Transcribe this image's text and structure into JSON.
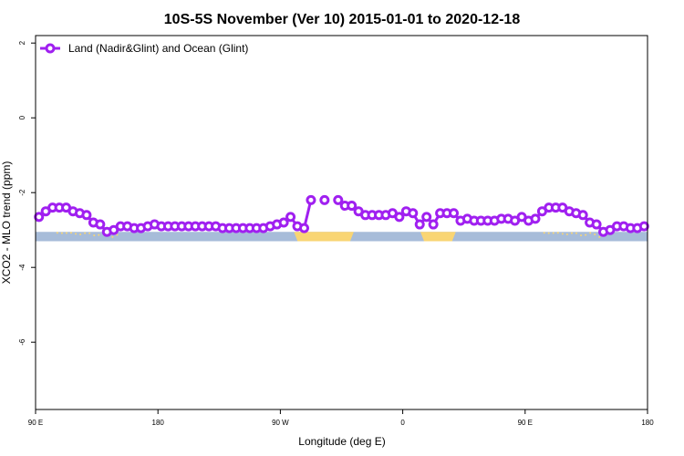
{
  "chart_data": {
    "type": "line",
    "title": "10S-5S November (Ver 10)   2015-01-01 to 2020-12-18",
    "xlabel": "Longitude (deg E)",
    "ylabel": "XCO2 - MLO trend (ppm)",
    "x_axis": {
      "range_deg_east_unwrapped": [
        90,
        540
      ],
      "ticks": [
        {
          "value": 90,
          "label": "90 E"
        },
        {
          "value": 180,
          "label": "180"
        },
        {
          "value": 270,
          "label": "90 W"
        },
        {
          "value": 360,
          "label": "0"
        },
        {
          "value": 450,
          "label": "90 E"
        },
        {
          "value": 540,
          "label": "180"
        }
      ]
    },
    "y_axis": {
      "range": [
        -7.8,
        2.2
      ],
      "ticks": [
        {
          "value": 2,
          "label": "2"
        },
        {
          "value": 0,
          "label": "0"
        },
        {
          "value": -2,
          "label": "-2"
        },
        {
          "value": -4,
          "label": "-4"
        },
        {
          "value": -6,
          "label": "-6"
        }
      ]
    },
    "legend": {
      "position": "top-left",
      "entries": [
        {
          "label": "Land (Nadir&Glint) and Ocean (Glint)",
          "color": "#a020f0"
        }
      ]
    },
    "series": [
      {
        "name": "Land (Nadir&Glint) and Ocean (Glint)",
        "color": "#a020f0",
        "segments": [
          [
            [
              92.5,
              -2.65
            ],
            [
              97.5,
              -2.5
            ],
            [
              102.5,
              -2.4
            ],
            [
              107.5,
              -2.4
            ],
            [
              112.5,
              -2.4
            ],
            [
              117.5,
              -2.5
            ],
            [
              122.5,
              -2.55
            ],
            [
              127.5,
              -2.6
            ],
            [
              132.5,
              -2.8
            ],
            [
              137.5,
              -2.85
            ],
            [
              142.5,
              -3.05
            ],
            [
              147.5,
              -3.0
            ],
            [
              152.5,
              -2.9
            ],
            [
              157.5,
              -2.9
            ],
            [
              162.5,
              -2.95
            ],
            [
              167.5,
              -2.95
            ],
            [
              172.5,
              -2.9
            ],
            [
              177.5,
              -2.85
            ],
            [
              182.5,
              -2.9
            ],
            [
              187.5,
              -2.9
            ],
            [
              192.5,
              -2.9
            ],
            [
              197.5,
              -2.9
            ],
            [
              202.5,
              -2.9
            ],
            [
              207.5,
              -2.9
            ],
            [
              212.5,
              -2.9
            ],
            [
              217.5,
              -2.9
            ],
            [
              222.5,
              -2.9
            ],
            [
              227.5,
              -2.95
            ],
            [
              232.5,
              -2.95
            ],
            [
              237.5,
              -2.95
            ],
            [
              242.5,
              -2.95
            ],
            [
              247.5,
              -2.95
            ],
            [
              252.5,
              -2.95
            ],
            [
              257.5,
              -2.95
            ],
            [
              262.5,
              -2.9
            ],
            [
              267.5,
              -2.85
            ],
            [
              272.5,
              -2.8
            ],
            [
              277.5,
              -2.65
            ],
            [
              282.5,
              -2.9
            ],
            [
              287.5,
              -2.95
            ],
            [
              292.5,
              -2.2
            ]
          ],
          [
            [
              302.5,
              -2.2
            ]
          ],
          [
            [
              312.5,
              -2.2
            ],
            [
              317.5,
              -2.35
            ],
            [
              322.5,
              -2.35
            ],
            [
              327.5,
              -2.5
            ],
            [
              332.5,
              -2.6
            ],
            [
              337.5,
              -2.6
            ],
            [
              342.5,
              -2.6
            ],
            [
              347.5,
              -2.6
            ],
            [
              352.5,
              -2.55
            ],
            [
              357.5,
              -2.65
            ],
            [
              362.5,
              -2.5
            ],
            [
              367.5,
              -2.55
            ],
            [
              372.5,
              -2.85
            ],
            [
              377.5,
              -2.65
            ],
            [
              382.5,
              -2.85
            ],
            [
              387.5,
              -2.55
            ],
            [
              392.5,
              -2.55
            ],
            [
              397.5,
              -2.55
            ],
            [
              402.5,
              -2.75
            ],
            [
              407.5,
              -2.7
            ],
            [
              412.5,
              -2.75
            ],
            [
              417.5,
              -2.75
            ],
            [
              422.5,
              -2.75
            ],
            [
              427.5,
              -2.75
            ],
            [
              432.5,
              -2.7
            ],
            [
              437.5,
              -2.7
            ],
            [
              442.5,
              -2.75
            ],
            [
              447.5,
              -2.65
            ],
            [
              452.5,
              -2.75
            ],
            [
              457.5,
              -2.7
            ],
            [
              462.5,
              -2.5
            ],
            [
              467.5,
              -2.4
            ],
            [
              472.5,
              -2.4
            ],
            [
              477.5,
              -2.4
            ],
            [
              482.5,
              -2.5
            ],
            [
              487.5,
              -2.55
            ],
            [
              492.5,
              -2.6
            ],
            [
              497.5,
              -2.8
            ],
            [
              502.5,
              -2.85
            ],
            [
              507.5,
              -3.05
            ],
            [
              512.5,
              -3.0
            ],
            [
              517.5,
              -2.9
            ],
            [
              522.5,
              -2.9
            ],
            [
              527.5,
              -2.95
            ],
            [
              532.5,
              -2.95
            ],
            [
              537.5,
              -2.9
            ]
          ]
        ]
      }
    ],
    "surface_band": {
      "y_top": -3.05,
      "y_bottom": -3.3,
      "ocean_color": "#a7bcd9",
      "land_color": "#f9d573",
      "land_spans": [
        [
          280,
          324
        ],
        [
          373,
          399
        ]
      ],
      "scattered_land": [
        [
          106,
          150
        ],
        [
          464,
          508
        ]
      ]
    }
  }
}
